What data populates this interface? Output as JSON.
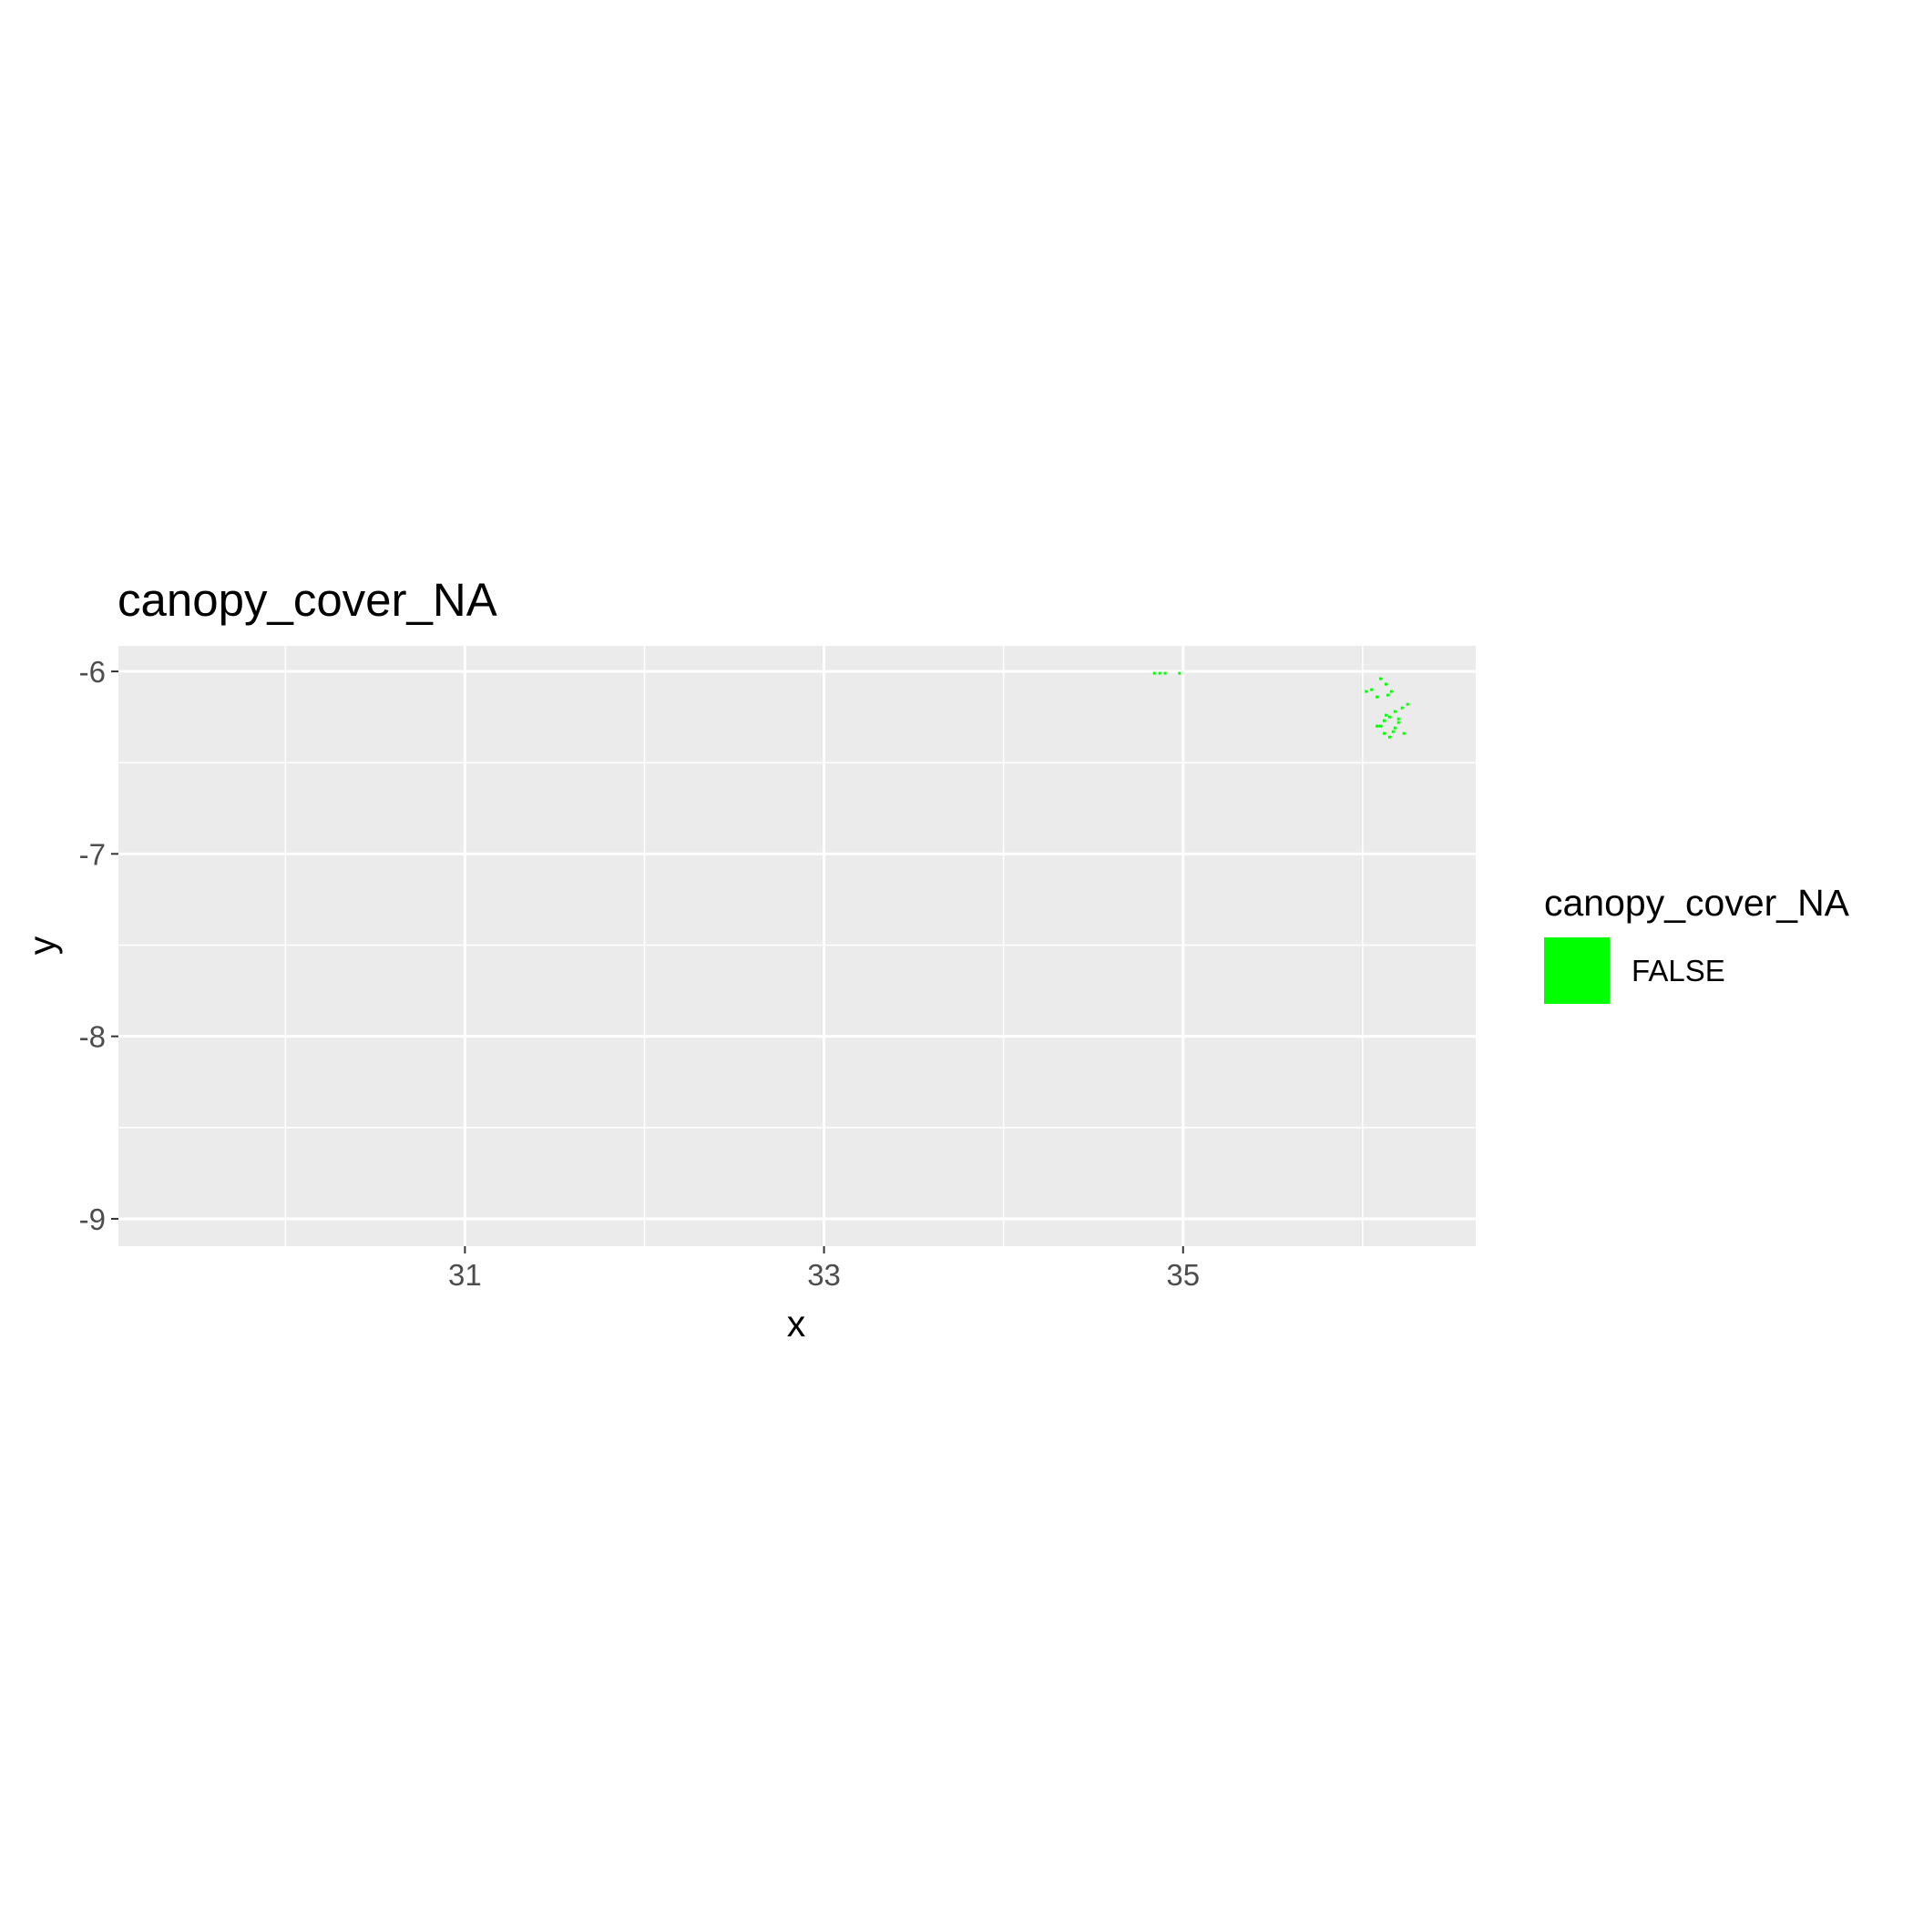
{
  "chart_data": {
    "type": "scatter",
    "title": "canopy_cover_NA",
    "xlabel": "x",
    "ylabel": "y",
    "xlim": [
      29.07,
      36.63
    ],
    "ylim": [
      -9.15,
      -5.86
    ],
    "x_ticks": [
      31,
      33,
      35
    ],
    "y_ticks": [
      -6,
      -7,
      -8,
      -9
    ],
    "x_minor_grid": [
      30,
      32,
      34,
      36
    ],
    "y_minor_grid": [
      -6.5,
      -7.5,
      -8.5
    ],
    "grid": true,
    "legend": {
      "title": "canopy_cover_NA",
      "position": "right",
      "entries": [
        {
          "label": "FALSE",
          "color": "#00ff00"
        }
      ]
    },
    "series": [
      {
        "name": "FALSE",
        "color": "#00ff00",
        "x": [
          34.84,
          34.87,
          34.9,
          34.98,
          36.1,
          36.13,
          36.16,
          36.14,
          36.05,
          36.08,
          36.25,
          36.22,
          36.18,
          36.13,
          36.15,
          36.12,
          36.2,
          36.08,
          36.18,
          36.17,
          36.12,
          36.15,
          36.23,
          36.02,
          36.2,
          36.1
        ],
        "y": [
          -6.01,
          -6.01,
          -6.01,
          -6.01,
          -6.04,
          -6.07,
          -6.11,
          -6.13,
          -6.1,
          -6.14,
          -6.18,
          -6.2,
          -6.22,
          -6.24,
          -6.25,
          -6.27,
          -6.28,
          -6.3,
          -6.31,
          -6.33,
          -6.34,
          -6.36,
          -6.34,
          -6.11,
          -6.26,
          -6.3
        ]
      }
    ]
  },
  "colors": {
    "panel": "#ebebeb",
    "grid": "#ffffff",
    "point": "#00ff00",
    "tick_text": "#4d4d4d"
  }
}
